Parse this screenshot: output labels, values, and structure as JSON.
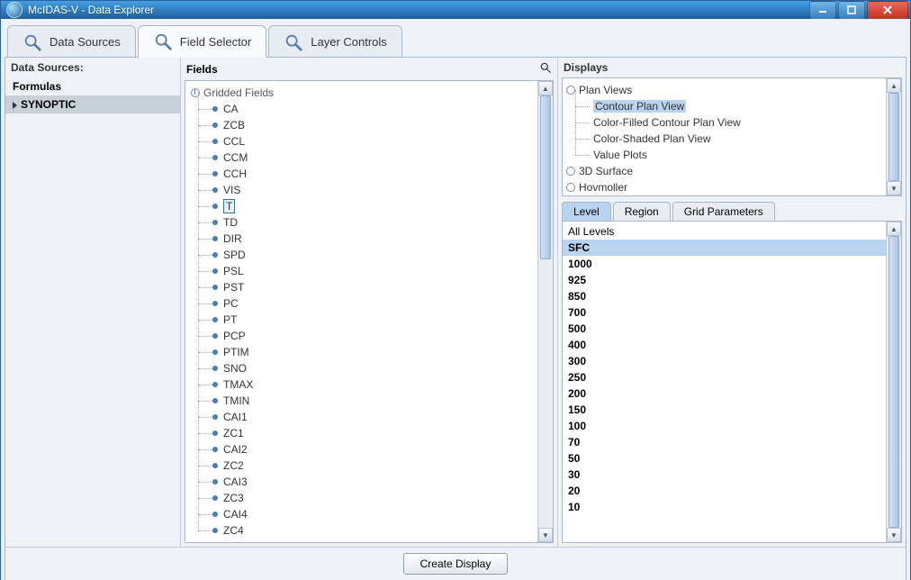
{
  "window": {
    "title": "McIDAS-V - Data Explorer"
  },
  "tabs": {
    "data_sources": "Data Sources",
    "field_selector": "Field Selector",
    "layer_controls": "Layer Controls",
    "active_index": 1
  },
  "data_sources_panel": {
    "header": "Data Sources:",
    "items": [
      "Formulas",
      "SYNOPTIC"
    ],
    "selected_index": 1
  },
  "fields_panel": {
    "header": "Fields",
    "root_label": "Gridded Fields",
    "items": [
      "CA",
      "ZCB",
      "CCL",
      "CCM",
      "CCH",
      "VIS",
      "T",
      "TD",
      "DIR",
      "SPD",
      "PSL",
      "PST",
      "PC",
      "PT",
      "PCP",
      "PTIM",
      "SNO",
      "TMAX",
      "TMIN",
      "CAI1",
      "ZC1",
      "CAI2",
      "ZC2",
      "CAI3",
      "ZC3",
      "CAI4",
      "ZC4"
    ],
    "selected_index": 6
  },
  "displays_panel": {
    "header": "Displays",
    "groups": [
      {
        "label": "Plan Views",
        "expanded": true,
        "children": [
          "Contour Plan View",
          "Color-Filled Contour Plan View",
          "Color-Shaded Plan View",
          "Value Plots"
        ]
      },
      {
        "label": "3D Surface",
        "expanded": false
      },
      {
        "label": "Hovmoller",
        "expanded": false
      }
    ],
    "selected_path": [
      0,
      0
    ]
  },
  "sub_tabs": {
    "items": [
      "Level",
      "Region",
      "Grid Parameters"
    ],
    "active_index": 0
  },
  "levels": {
    "header": "All Levels",
    "items": [
      "SFC",
      "1000",
      "925",
      "850",
      "700",
      "500",
      "400",
      "300",
      "250",
      "200",
      "150",
      "100",
      "70",
      "50",
      "30",
      "20",
      "10"
    ],
    "selected_index": 0
  },
  "bottom": {
    "create_display": "Create Display"
  },
  "colors": {
    "selection_bg": "#b8d4ee",
    "border": "#a9b8c8"
  }
}
